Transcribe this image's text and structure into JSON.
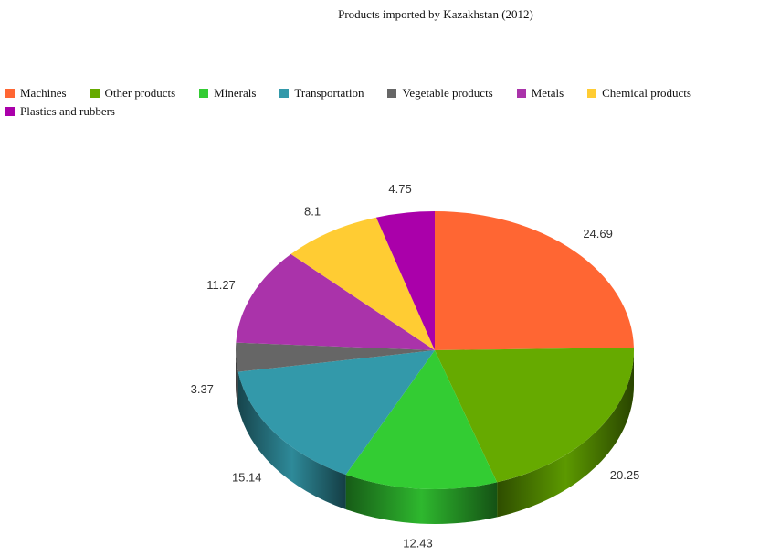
{
  "chart_data": {
    "type": "pie",
    "title": "Products imported by Kazakhstan (2012)",
    "legend_position": "top",
    "style": "3d",
    "series": [
      {
        "name": "Machines",
        "value": 24.69,
        "color": "#FF6633"
      },
      {
        "name": "Other products",
        "value": 20.25,
        "color": "#66AA00"
      },
      {
        "name": "Minerals",
        "value": 12.43,
        "color": "#33CC33"
      },
      {
        "name": "Transportation",
        "value": 15.14,
        "color": "#3399AA"
      },
      {
        "name": "Vegetable products",
        "value": 3.37,
        "color": "#666666"
      },
      {
        "name": "Metals",
        "value": 11.27,
        "color": "#AA33AA"
      },
      {
        "name": "Chemical products",
        "value": 8.1,
        "color": "#FFCC33"
      },
      {
        "name": "Plastics and rubbers",
        "value": 4.75,
        "color": "#AA00AA"
      }
    ],
    "value_labels": [
      "24.69",
      "20.25",
      "12.43",
      "15.14",
      "3.37",
      "11.27",
      "8.1",
      "4.75"
    ]
  }
}
